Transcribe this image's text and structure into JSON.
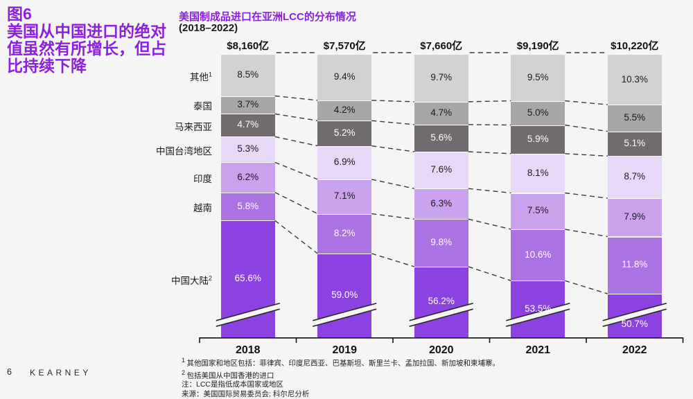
{
  "page": {
    "number": "6",
    "brand": "KEARNEY",
    "background": "#f6f5f6",
    "accent_color": "#8c1fe0"
  },
  "headline": {
    "figure": "图6",
    "text": "美国从中国进口的绝对值虽然有所增长，但占比持续下降"
  },
  "chart": {
    "title": "美国制成品进口在亚洲LCC的分布情况",
    "subtitle": "(2018–2022)"
  },
  "chart_data": {
    "type": "bar",
    "stacked": true,
    "unit": "%",
    "axis_break": true,
    "legend_position": "left-of-first-bar",
    "categories": [
      "2018",
      "2019",
      "2020",
      "2021",
      "2022"
    ],
    "totals": [
      "$8,160亿",
      "$7,570亿",
      "$7,660亿",
      "$9,190亿",
      "$10,220亿"
    ],
    "series": [
      {
        "name": "其他",
        "footnote_marker": "1",
        "color": "#d3d1d3",
        "text_color": "#1a1a1a",
        "values": [
          8.5,
          9.4,
          9.7,
          9.5,
          10.3
        ]
      },
      {
        "name": "泰国",
        "footnote_marker": "",
        "color": "#a9a6a9",
        "text_color": "#1a1a1a",
        "values": [
          3.7,
          4.2,
          4.7,
          5.0,
          5.5
        ]
      },
      {
        "name": "马来西亚",
        "footnote_marker": "",
        "color": "#6f6b6f",
        "text_color": "#ffffff",
        "values": [
          4.7,
          5.2,
          5.6,
          5.9,
          5.1
        ]
      },
      {
        "name": "中国台湾地区",
        "footnote_marker": "",
        "color": "#e8d8f8",
        "text_color": "#1a1a1a",
        "values": [
          5.3,
          6.9,
          7.6,
          8.1,
          8.7
        ]
      },
      {
        "name": "印度",
        "footnote_marker": "",
        "color": "#c9a3ee",
        "text_color": "#1a1a1a",
        "values": [
          6.2,
          7.1,
          6.3,
          7.5,
          7.9
        ]
      },
      {
        "name": "越南",
        "footnote_marker": "",
        "color": "#ab72e4",
        "text_color": "#ffffff",
        "values": [
          5.8,
          8.2,
          9.8,
          10.6,
          11.8
        ]
      },
      {
        "name": "中国大陆",
        "footnote_marker": "2",
        "color": "#8c42e0",
        "text_color": "#ffffff",
        "values": [
          65.6,
          59.0,
          56.2,
          53.5,
          50.7
        ]
      }
    ]
  },
  "footnotes": [
    {
      "marker": "1",
      "text": "其他国家和地区包括：菲律宾、印度尼西亚、巴基斯坦、斯里兰卡、孟加拉国、新加坡和柬埔寨。"
    },
    {
      "marker": "2",
      "text": "包括美国从中国香港的进口"
    },
    {
      "marker": "",
      "text": "注：LCC是指低成本国家或地区"
    },
    {
      "marker": "",
      "text": "来源：美国国际贸易委员会; 科尔尼分析"
    }
  ]
}
